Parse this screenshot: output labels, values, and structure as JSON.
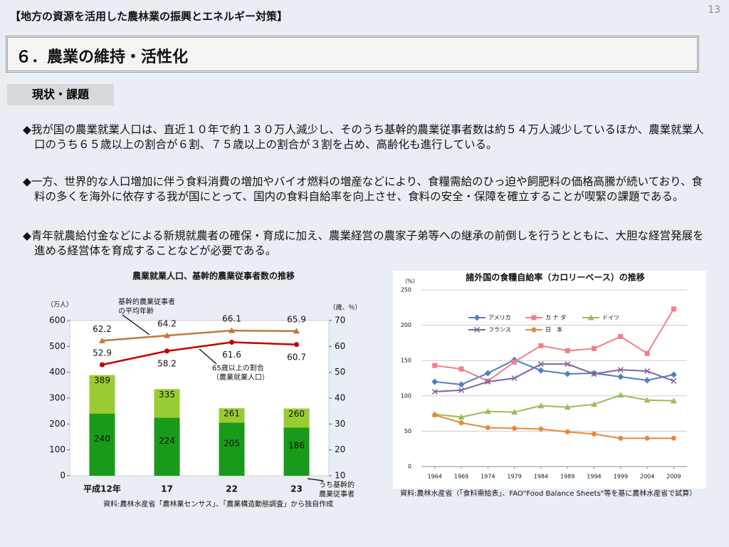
{
  "page_number": "13",
  "header": "【地方の資源を活用した農林業の振興とエネルギー対策】",
  "section_title": "６．農業の維持・活性化",
  "tag": "現状・課題",
  "bullets": [
    "◆我が国の農業就業人口は、直近１０年で約１３０万人減少し、そのうち基幹的農業従事者数は約５４万人減少しているほか、農業就業人口のうち６５歳以上の割合が６割、７５歳以上の割合が３割を占め、高齢化も進行している。",
    "◆一方、世界的な人口増加に伴う食料消費の増加やバイオ燃料の増産などにより、食糧需給のひっ迫や飼肥料の価格高騰が続いており、食料の多くを海外に依存する我が国にとって、国内の食料自給率を向上させ、食料の安全・保障を確立することが喫緊の課題である。",
    "◆青年就農給付金などによる新規就農者の確保・育成に加え、農業経営の農家子弟等への継承の前倒しを行うとともに、大胆な経営発展を進める経営体を育成することなどが必要である。"
  ],
  "chart_data": [
    {
      "type": "bar",
      "title": "農業就業人口、基幹的農業従事者数の推移",
      "bar_mode": "overlay",
      "categories": [
        "平成12年",
        "17",
        "22",
        "23"
      ],
      "series": [
        {
          "values": [
            389,
            335,
            261,
            260
          ],
          "color": "#99cc33"
        },
        {
          "values": [
            240,
            224,
            205,
            186
          ],
          "color": "#1a9a1a"
        },
        {
          "values": [
            62.2,
            64.2,
            66.1,
            65.9
          ],
          "color": "#c0793a",
          "type": "line",
          "axis": "y2"
        },
        {
          "values": [
            52.9,
            58.2,
            61.6,
            60.7
          ],
          "color": "#c00000",
          "type": "line",
          "axis": "y2"
        }
      ],
      "ylim": [
        0,
        600
      ],
      "yticks": [
        0,
        100,
        200,
        300,
        400,
        500,
        600
      ],
      "y2lim": [
        10,
        70
      ],
      "y2ticks": [
        10,
        20,
        30,
        40,
        50,
        60,
        70
      ],
      "ylabel": "（万人）",
      "y2label": "（歳、％）",
      "grid": false,
      "annotations": [
        {
          "lines": [
            "基幹的農業従事者",
            "の平均年齢"
          ]
        },
        {
          "lines": [
            "65歳以上の割合",
            "（農業就業人口）"
          ]
        },
        {
          "lines": [
            "うち基幹的",
            "農業従事者"
          ]
        }
      ],
      "source": "資料:農林水産省「農林業センサス」、「農業構造動態調査」から独自作成"
    },
    {
      "type": "line",
      "title": "諸外国の食糧自給率（カロリーベース）の推移",
      "x": [
        1964,
        1969,
        1974,
        1979,
        1984,
        1989,
        1994,
        1999,
        2004,
        2009
      ],
      "xlim": [
        1961.5,
        2011.5
      ],
      "xticks": [
        1964,
        1969,
        1974,
        1979,
        1984,
        1989,
        1994,
        1999,
        2004,
        2009
      ],
      "ylim": [
        0,
        250
      ],
      "yticks": [
        0,
        50,
        100,
        150,
        200,
        250
      ],
      "ylabel": "（%）",
      "grid": true,
      "legend": "top-left",
      "series": [
        {
          "name": "アメリカ",
          "color": "#4f81bd",
          "marker": "diamond",
          "values": [
            120,
            116,
            132,
            151,
            136,
            131,
            132,
            127,
            122,
            130
          ]
        },
        {
          "name": "カ ナ ダ",
          "color": "#f07f8a",
          "marker": "square",
          "values": [
            143,
            138,
            121,
            148,
            171,
            164,
            167,
            184,
            160,
            223
          ]
        },
        {
          "name": "ドイツ",
          "color": "#9bbb59",
          "marker": "triangle",
          "values": [
            74,
            70,
            78,
            77,
            86,
            84,
            88,
            101,
            94,
            93
          ]
        },
        {
          "name": "フランス",
          "color": "#8064a2",
          "marker": "x",
          "values": [
            106,
            108,
            120,
            125,
            145,
            145,
            131,
            137,
            135,
            121
          ]
        },
        {
          "name": "日　本",
          "color": "#e8883a",
          "marker": "circle",
          "values": [
            73,
            62,
            55,
            54,
            53,
            49,
            46,
            40,
            40,
            40
          ]
        }
      ],
      "source": "資料:農林水産省（「食料需給表」、FAO\"Food Balance Sheets\"等を基に農林水産省で試算）"
    }
  ]
}
